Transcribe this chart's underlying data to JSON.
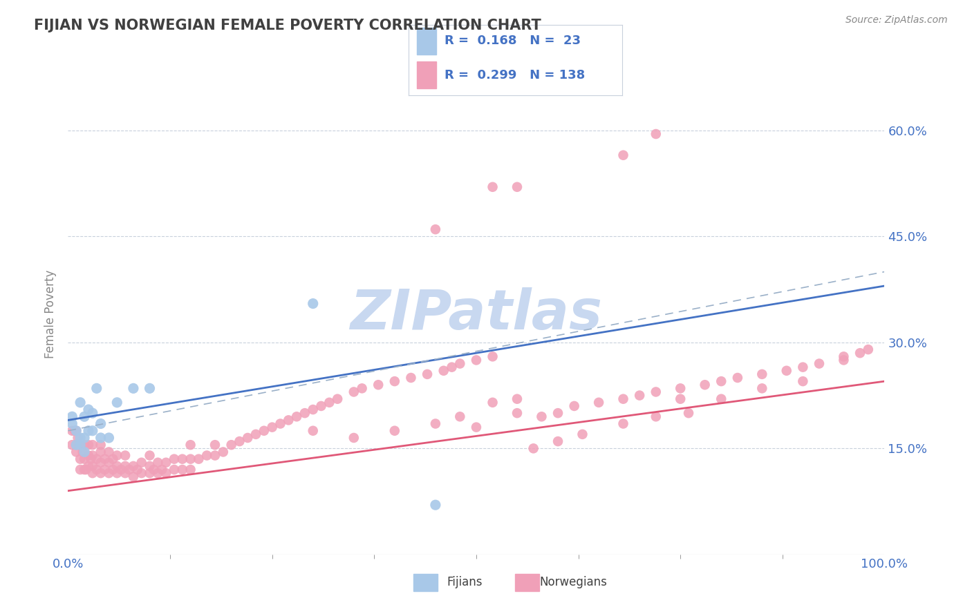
{
  "title": "FIJIAN VS NORWEGIAN FEMALE POVERTY CORRELATION CHART",
  "source": "Source: ZipAtlas.com",
  "ylabel": "Female Poverty",
  "xlim": [
    0,
    1
  ],
  "ylim": [
    0.0,
    0.68
  ],
  "yticks": [
    0.15,
    0.3,
    0.45,
    0.6
  ],
  "ytick_labels": [
    "15.0%",
    "30.0%",
    "45.0%",
    "60.0%"
  ],
  "xtick_labels": [
    "0.0%",
    "100.0%"
  ],
  "fijian_color": "#a8c8e8",
  "norwegian_color": "#f0a0b8",
  "fijian_line_color": "#4472c4",
  "norwegian_line_color": "#e05878",
  "background_color": "#ffffff",
  "grid_color": "#c8d0dc",
  "title_color": "#404040",
  "axis_label_color": "#4472c4",
  "watermark_color": "#c8d8f0",
  "fij_x": [
    0.005,
    0.005,
    0.01,
    0.01,
    0.015,
    0.015,
    0.015,
    0.02,
    0.02,
    0.02,
    0.025,
    0.025,
    0.03,
    0.03,
    0.035,
    0.04,
    0.04,
    0.05,
    0.06,
    0.08,
    0.1,
    0.3,
    0.45
  ],
  "fij_y": [
    0.185,
    0.195,
    0.155,
    0.175,
    0.155,
    0.165,
    0.215,
    0.145,
    0.165,
    0.195,
    0.175,
    0.205,
    0.175,
    0.2,
    0.235,
    0.165,
    0.185,
    0.165,
    0.215,
    0.235,
    0.235,
    0.355,
    0.07
  ],
  "nor_x": [
    0.005,
    0.005,
    0.008,
    0.01,
    0.01,
    0.01,
    0.012,
    0.015,
    0.015,
    0.015,
    0.018,
    0.02,
    0.02,
    0.02,
    0.022,
    0.025,
    0.025,
    0.025,
    0.028,
    0.03,
    0.03,
    0.03,
    0.03,
    0.035,
    0.035,
    0.04,
    0.04,
    0.04,
    0.04,
    0.045,
    0.045,
    0.05,
    0.05,
    0.05,
    0.055,
    0.055,
    0.06,
    0.06,
    0.06,
    0.065,
    0.07,
    0.07,
    0.07,
    0.075,
    0.08,
    0.08,
    0.085,
    0.09,
    0.09,
    0.1,
    0.1,
    0.1,
    0.105,
    0.11,
    0.11,
    0.115,
    0.12,
    0.12,
    0.13,
    0.13,
    0.14,
    0.14,
    0.15,
    0.15,
    0.15,
    0.16,
    0.17,
    0.18,
    0.18,
    0.19,
    0.2,
    0.21,
    0.22,
    0.23,
    0.24,
    0.25,
    0.26,
    0.27,
    0.28,
    0.29,
    0.3,
    0.31,
    0.32,
    0.33,
    0.35,
    0.36,
    0.38,
    0.4,
    0.42,
    0.44,
    0.46,
    0.47,
    0.48,
    0.5,
    0.52,
    0.55,
    0.55,
    0.58,
    0.6,
    0.62,
    0.65,
    0.68,
    0.7,
    0.72,
    0.75,
    0.75,
    0.78,
    0.8,
    0.82,
    0.85,
    0.88,
    0.9,
    0.92,
    0.95,
    0.95,
    0.97,
    0.98,
    0.3,
    0.5,
    0.55,
    0.35,
    0.4,
    0.45,
    0.48,
    0.52,
    0.57,
    0.6,
    0.63,
    0.68,
    0.72,
    0.76,
    0.8,
    0.85,
    0.9,
    0.45,
    0.52,
    0.68,
    0.72
  ],
  "nor_y": [
    0.155,
    0.175,
    0.175,
    0.145,
    0.155,
    0.175,
    0.165,
    0.12,
    0.135,
    0.155,
    0.145,
    0.12,
    0.135,
    0.155,
    0.12,
    0.125,
    0.14,
    0.155,
    0.135,
    0.115,
    0.125,
    0.14,
    0.155,
    0.12,
    0.135,
    0.115,
    0.13,
    0.145,
    0.155,
    0.12,
    0.135,
    0.115,
    0.13,
    0.145,
    0.12,
    0.135,
    0.115,
    0.125,
    0.14,
    0.12,
    0.115,
    0.125,
    0.14,
    0.12,
    0.11,
    0.125,
    0.12,
    0.115,
    0.13,
    0.115,
    0.125,
    0.14,
    0.12,
    0.115,
    0.13,
    0.12,
    0.115,
    0.13,
    0.12,
    0.135,
    0.12,
    0.135,
    0.12,
    0.135,
    0.155,
    0.135,
    0.14,
    0.14,
    0.155,
    0.145,
    0.155,
    0.16,
    0.165,
    0.17,
    0.175,
    0.18,
    0.185,
    0.19,
    0.195,
    0.2,
    0.205,
    0.21,
    0.215,
    0.22,
    0.23,
    0.235,
    0.24,
    0.245,
    0.25,
    0.255,
    0.26,
    0.265,
    0.27,
    0.275,
    0.28,
    0.2,
    0.22,
    0.195,
    0.2,
    0.21,
    0.215,
    0.22,
    0.225,
    0.23,
    0.235,
    0.22,
    0.24,
    0.245,
    0.25,
    0.255,
    0.26,
    0.265,
    0.27,
    0.275,
    0.28,
    0.285,
    0.29,
    0.175,
    0.18,
    0.52,
    0.165,
    0.175,
    0.185,
    0.195,
    0.215,
    0.15,
    0.16,
    0.17,
    0.185,
    0.195,
    0.2,
    0.22,
    0.235,
    0.245,
    0.46,
    0.52,
    0.565,
    0.595
  ],
  "fij_trend": [
    0.0,
    1.0
  ],
  "fij_trend_y0": 0.19,
  "fij_trend_y1": 0.38,
  "nor_trend_y0": 0.09,
  "nor_trend_y1": 0.245
}
